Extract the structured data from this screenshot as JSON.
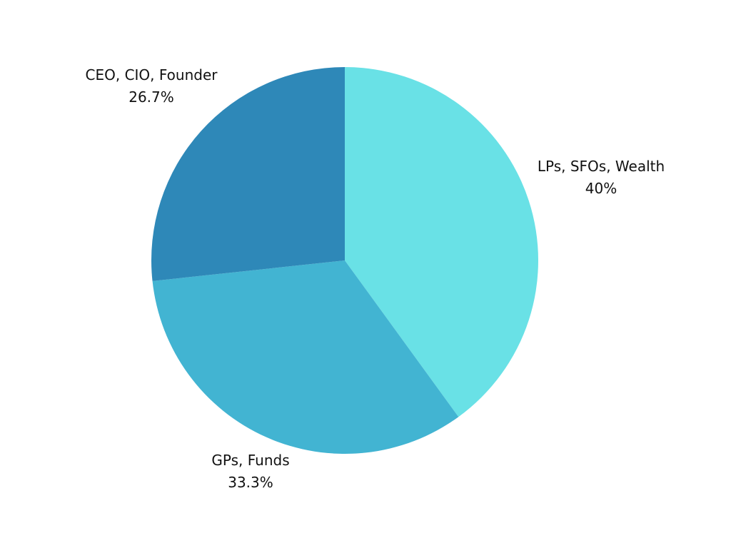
{
  "chart_data": {
    "type": "pie",
    "title": "",
    "slices": [
      {
        "label": "LPs, SFOs, Wealth",
        "value": 40,
        "value_label": "40%",
        "color": "#69E1E6"
      },
      {
        "label": "GPs, Funds",
        "value": 33.3,
        "value_label": "33.3%",
        "color": "#42B4D2"
      },
      {
        "label": "CEO, CIO, Founder",
        "value": 26.7,
        "value_label": "26.7%",
        "color": "#2E88B8"
      }
    ],
    "start_angle_deg": 0,
    "direction": "clockwise",
    "legend": "none",
    "background": "#FFFFFF"
  }
}
